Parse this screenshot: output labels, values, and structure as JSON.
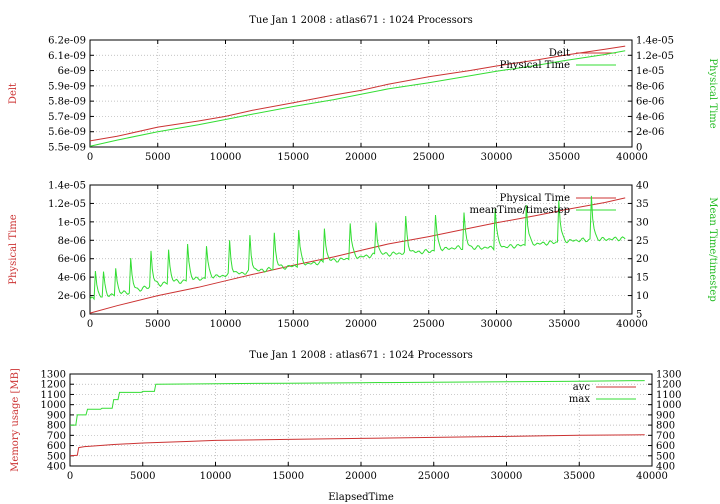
{
  "colors": {
    "red": "#cc3333",
    "green": "#33dd33",
    "axis": "#000000",
    "grid": "#b0b0b0"
  },
  "chart_data": [
    {
      "type": "line",
      "title": "Tue Jan 1 2008 : atlas671 : 1024 Processors",
      "xlabel": "",
      "ylabel": "Delt",
      "y2label": "Physical Time",
      "xlim": [
        0,
        40000
      ],
      "ylim": [
        5.5e-09,
        6.2e-09
      ],
      "y2lim": [
        0,
        1.4e-05
      ],
      "xticks": [
        "0",
        "5000",
        "10000",
        "15000",
        "20000",
        "25000",
        "30000",
        "35000",
        "40000"
      ],
      "yticks": [
        "5.5e-09",
        "5.6e-09",
        "5.7e-09",
        "5.8e-09",
        "5.9e-09",
        "6e-09",
        "6.1e-09",
        "6.2e-09"
      ],
      "y2ticks": [
        "0",
        "2e-06",
        "4e-06",
        "6e-06",
        "8e-06",
        "1e-05",
        "1.2e-05",
        "1.4e-05"
      ],
      "grid": true,
      "legend_position": "top-right",
      "series": [
        {
          "name": "Delt",
          "axis": "y",
          "color": "red",
          "x": [
            0,
            2000,
            5000,
            8000,
            10000,
            12000,
            15000,
            18000,
            20000,
            22000,
            25000,
            28000,
            30000,
            33000,
            35000,
            38000,
            39500
          ],
          "y": [
            5.54e-09,
            5.57e-09,
            5.63e-09,
            5.67e-09,
            5.7e-09,
            5.74e-09,
            5.79e-09,
            5.84e-09,
            5.87e-09,
            5.91e-09,
            5.96e-09,
            6e-09,
            6.03e-09,
            6.07e-09,
            6.1e-09,
            6.14e-09,
            6.16e-09
          ]
        },
        {
          "name": "Physical Time",
          "axis": "y2",
          "color": "green",
          "x": [
            0,
            2000,
            5000,
            8000,
            10000,
            12000,
            15000,
            18000,
            20000,
            22000,
            25000,
            28000,
            30000,
            33000,
            35000,
            38000,
            39500
          ],
          "y": [
            1e-07,
            9e-07,
            2e-06,
            2.9e-06,
            3.6e-06,
            4.3e-06,
            5.3e-06,
            6.2e-06,
            6.9e-06,
            7.6e-06,
            8.4e-06,
            9.3e-06,
            9.9e-06,
            1.07e-05,
            1.13e-05,
            1.21e-05,
            1.26e-05
          ]
        }
      ]
    },
    {
      "type": "line",
      "title": "",
      "xlabel": "",
      "ylabel": "Physical Time",
      "y2label": "Mean Time/timestep",
      "xlim": [
        0,
        40000
      ],
      "ylim": [
        0,
        1.4e-05
      ],
      "y2lim": [
        5,
        40
      ],
      "xticks": [
        "0",
        "5000",
        "10000",
        "15000",
        "20000",
        "25000",
        "30000",
        "35000",
        "40000"
      ],
      "yticks": [
        "0",
        "2e-06",
        "4e-06",
        "6e-06",
        "8e-06",
        "1e-05",
        "1.2e-05",
        "1.4e-05"
      ],
      "y2ticks": [
        "5",
        "10",
        "15",
        "20",
        "25",
        "30",
        "35",
        "40"
      ],
      "grid": true,
      "legend_position": "top-right",
      "series": [
        {
          "name": "Physical Time",
          "axis": "y",
          "color": "red",
          "x": [
            0,
            2000,
            5000,
            8000,
            10000,
            12000,
            15000,
            18000,
            20000,
            22000,
            25000,
            28000,
            30000,
            33000,
            35000,
            38000,
            39500
          ],
          "y": [
            1e-07,
            9e-07,
            2e-06,
            2.9e-06,
            3.6e-06,
            4.3e-06,
            5.3e-06,
            6.2e-06,
            6.9e-06,
            7.6e-06,
            8.4e-06,
            9.3e-06,
            9.9e-06,
            1.07e-05,
            1.13e-05,
            1.21e-05,
            1.26e-05
          ]
        },
        {
          "name": "meanTime/timestep",
          "axis": "y2",
          "color": "green",
          "baseline": {
            "x": [
              0,
              1000,
              3000,
              5000,
              7000,
              9000,
              11000,
              13000,
              15000,
              17000,
              19000,
              21000,
              23000,
              25000,
              27000,
              30000,
              33000,
              36000,
              39500
            ],
            "y": [
              9,
              9.5,
              11,
              13,
              14,
              15,
              16,
              17,
              18,
              19,
              20,
              21,
              21.5,
              22,
              23,
              23,
              24,
              25,
              25.5
            ]
          },
          "spikes": [
            {
              "x": 400,
              "y": 17
            },
            {
              "x": 1000,
              "y": 16
            },
            {
              "x": 1900,
              "y": 17.5
            },
            {
              "x": 3000,
              "y": 20
            },
            {
              "x": 4500,
              "y": 22
            },
            {
              "x": 5800,
              "y": 22.5
            },
            {
              "x": 7200,
              "y": 24
            },
            {
              "x": 8600,
              "y": 23.5
            },
            {
              "x": 10300,
              "y": 24.5
            },
            {
              "x": 11800,
              "y": 26
            },
            {
              "x": 13600,
              "y": 27
            },
            {
              "x": 15400,
              "y": 28
            },
            {
              "x": 17300,
              "y": 28.5
            },
            {
              "x": 19200,
              "y": 30
            },
            {
              "x": 21100,
              "y": 30
            },
            {
              "x": 23300,
              "y": 31
            },
            {
              "x": 25500,
              "y": 32
            },
            {
              "x": 27600,
              "y": 32.5
            },
            {
              "x": 29900,
              "y": 34
            },
            {
              "x": 32200,
              "y": 35
            },
            {
              "x": 34600,
              "y": 36
            },
            {
              "x": 37000,
              "y": 37
            }
          ]
        }
      ]
    },
    {
      "type": "line",
      "title": "Tue Jan 1 2008 : atlas671 : 1024 Processors",
      "xlabel": "ElapsedTime",
      "ylabel": "Memory usage [MB]",
      "xlim": [
        0,
        40000
      ],
      "ylim": [
        400,
        1300
      ],
      "y2lim": [
        400,
        1300
      ],
      "xticks": [
        "0",
        "5000",
        "10000",
        "15000",
        "20000",
        "25000",
        "30000",
        "35000",
        "40000"
      ],
      "yticks": [
        "400",
        "500",
        "600",
        "700",
        "800",
        "900",
        "1000",
        "1100",
        "1200",
        "1300"
      ],
      "y2ticks": [
        "400",
        "500",
        "600",
        "700",
        "800",
        "900",
        "1000",
        "1100",
        "1200",
        "1300"
      ],
      "grid": true,
      "legend_position": "top-right",
      "series": [
        {
          "name": "avc",
          "axis": "y",
          "color": "red",
          "x": [
            0,
            500,
            600,
            1000,
            1500,
            3000,
            5000,
            8000,
            10000,
            15000,
            20000,
            25000,
            30000,
            35000,
            39500
          ],
          "y": [
            500,
            505,
            580,
            590,
            595,
            610,
            625,
            640,
            650,
            660,
            670,
            680,
            690,
            700,
            705
          ]
        },
        {
          "name": "max",
          "axis": "y",
          "color": "green",
          "x": [
            0,
            400,
            500,
            1100,
            1200,
            2100,
            2200,
            2900,
            3000,
            3300,
            3400,
            4900,
            5000,
            5800,
            5900,
            10000,
            15000,
            20000,
            25000,
            30000,
            35000,
            39500
          ],
          "y": [
            800,
            800,
            900,
            900,
            955,
            955,
            965,
            965,
            1050,
            1050,
            1120,
            1120,
            1130,
            1130,
            1200,
            1205,
            1210,
            1215,
            1220,
            1225,
            1230,
            1235
          ]
        }
      ]
    }
  ]
}
